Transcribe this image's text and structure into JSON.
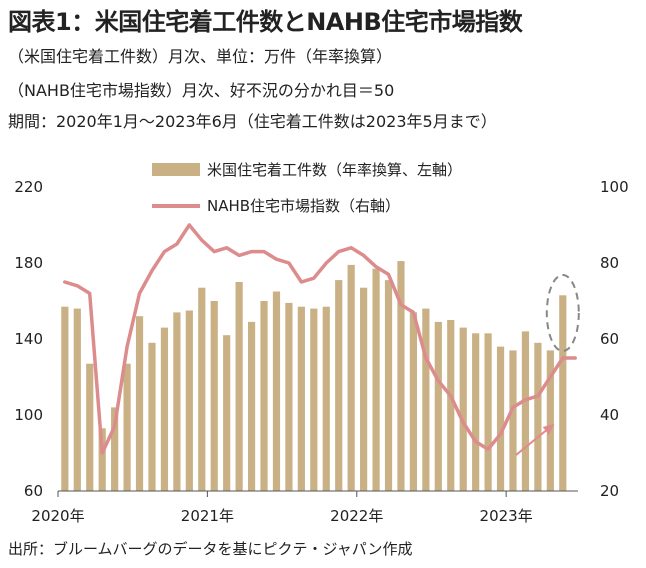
{
  "header": {
    "title": "図表1：米国住宅着工件数とNAHB住宅市場指数",
    "subtitle_lines": [
      "（米国住宅着工件数）月次、単位：万件（年率換算）",
      "（NAHB住宅市場指数）月次、好不況の分かれ目＝50",
      "期間：2020年1月～2023年6月（住宅着工件数は2023年5月まで）"
    ]
  },
  "footer": {
    "source": "出所：ブルームバーグのデータを基にピクテ・ジャパン作成"
  },
  "colors": {
    "bar": "#c9b185",
    "line": "#dc8c8c",
    "arrow": "#e08a8a",
    "ellipse": "#888888",
    "axis": "#555555"
  },
  "chart_data": {
    "type": "bar",
    "title": "",
    "months": [
      "2020-01",
      "2020-02",
      "2020-03",
      "2020-04",
      "2020-05",
      "2020-06",
      "2020-07",
      "2020-08",
      "2020-09",
      "2020-10",
      "2020-11",
      "2020-12",
      "2021-01",
      "2021-02",
      "2021-03",
      "2021-04",
      "2021-05",
      "2021-06",
      "2021-07",
      "2021-08",
      "2021-09",
      "2021-10",
      "2021-11",
      "2021-12",
      "2022-01",
      "2022-02",
      "2022-03",
      "2022-04",
      "2022-05",
      "2022-06",
      "2022-07",
      "2022-08",
      "2022-09",
      "2022-10",
      "2022-11",
      "2022-12",
      "2023-01",
      "2023-02",
      "2023-03",
      "2023-04",
      "2023-05",
      "2023-06"
    ],
    "x_tick_labels": [
      "2020年",
      "2021年",
      "2022年",
      "2023年"
    ],
    "x_tick_months": [
      "2020-01",
      "2021-01",
      "2022-01",
      "2023-01"
    ],
    "left_axis": {
      "ylim": [
        60,
        220
      ],
      "ticks": [
        60,
        100,
        140,
        180,
        220
      ]
    },
    "right_axis": {
      "ylim": [
        20,
        100
      ],
      "ticks": [
        20,
        40,
        60,
        80,
        100
      ]
    },
    "series": [
      {
        "name": "米国住宅着工件数（年率換算、左軸）",
        "type": "bar",
        "axis": "left",
        "values": [
          157,
          156,
          127,
          93,
          104,
          127,
          152,
          138,
          146,
          154,
          155,
          167,
          160,
          142,
          170,
          149,
          160,
          165,
          159,
          157,
          156,
          157,
          171,
          179,
          167,
          177,
          171,
          181,
          154,
          156,
          149,
          150,
          146,
          143,
          143,
          136,
          134,
          144,
          138,
          134,
          163,
          null
        ]
      },
      {
        "name": "NAHB住宅市場指数（右軸）",
        "type": "line",
        "axis": "right",
        "values": [
          75,
          74,
          72,
          30,
          37,
          58,
          72,
          78,
          83,
          85,
          90,
          86,
          83,
          84,
          82,
          83,
          83,
          81,
          80,
          75,
          76,
          80,
          83,
          84,
          82,
          79,
          77,
          69,
          67,
          55,
          49,
          45,
          38,
          33,
          31,
          35,
          42,
          44,
          45,
          50,
          55,
          55
        ]
      }
    ],
    "legend": "top-center",
    "grid": false,
    "annotations": [
      "dashed-ellipse-around-2023-05",
      "arrow-rising-2023"
    ]
  }
}
